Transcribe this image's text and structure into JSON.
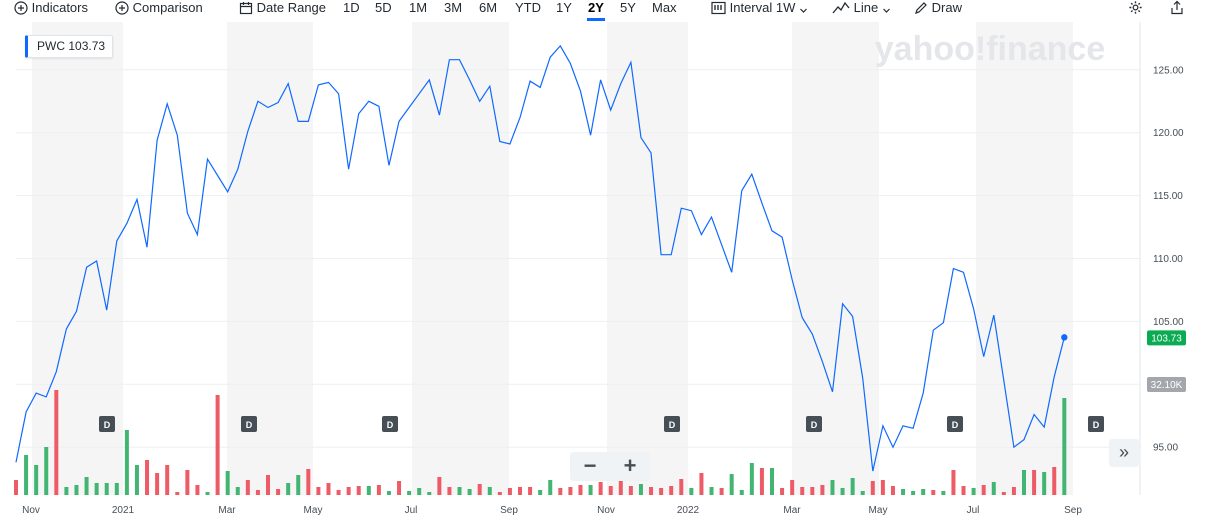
{
  "toolbar": {
    "indicators_label": "Indicators",
    "comparison_label": "Comparison",
    "date_range_label": "Date Range",
    "ranges": [
      "1D",
      "5D",
      "1M",
      "3M",
      "6M",
      "YTD",
      "1Y",
      "2Y",
      "5Y",
      "Max"
    ],
    "active_range": "2Y",
    "interval_label": "Interval",
    "interval_value": "1W",
    "chart_type_label": "Line",
    "draw_label": "Draw"
  },
  "watermark": "yahoo!finance",
  "legend": {
    "symbol": "PWC",
    "value": "103.73"
  },
  "current_price_label": "103.73",
  "current_volume_label": "32.10K",
  "colors": {
    "line": "#0f69ff",
    "vol_up": "#42b573",
    "vol_down": "#ed5b66",
    "price_badge": "#0bab54",
    "volume_badge": "#a3a7ab"
  },
  "chart_data": {
    "type": "line",
    "series": [
      {
        "values": [
          93.8,
          97.8,
          99.3,
          99,
          101,
          104.4,
          105.8,
          109.3,
          109.8,
          105.9,
          111.4,
          112.8,
          114.7,
          110.9,
          119.4,
          122.3,
          119.8,
          113.6,
          111.9,
          117.9,
          116.6,
          115.3,
          117.1,
          120.1,
          122.5,
          122.0,
          122.4,
          123.9,
          120.9,
          120.9,
          123.8,
          124.0,
          123.1,
          117.1,
          121.5,
          122.5,
          122.1,
          117.4,
          120.9,
          122.0,
          123.1,
          124.2,
          121.4,
          125.8,
          125.8,
          124.2,
          122.5,
          123.7,
          119.3,
          119.1,
          121.2,
          124.1,
          123.6,
          126.0,
          126.9,
          125.5,
          123.3,
          119.8,
          124.2,
          121.8,
          123.9,
          125.6,
          119.6,
          118.4,
          110.3,
          110.3,
          114.0,
          113.8,
          111.9,
          113.3,
          111.1,
          108.9,
          115.4,
          116.7,
          114.4,
          112.2,
          111.7,
          108.3,
          105.3,
          104.0,
          101.8,
          99.4,
          106.4,
          105.4,
          100.5,
          93.1,
          96.7,
          95.0,
          96.7,
          96.5,
          99.3,
          104.3,
          104.9,
          109.2,
          108.9,
          106.0,
          102.2,
          105.5,
          100.3,
          95.0,
          95.6,
          97.6,
          96.6,
          100.6,
          103.73
        ],
        "volume_direction": [
          "d",
          "u",
          "u",
          "u",
          "d",
          "u",
          "u",
          "u",
          "u",
          "u",
          "u",
          "u",
          "u",
          "d",
          "d",
          "d",
          "d",
          "d",
          "d",
          "u",
          "d",
          "u",
          "u",
          "d",
          "d",
          "d",
          "d",
          "u",
          "u",
          "d",
          "d",
          "d",
          "d",
          "d",
          "d",
          "u",
          "d",
          "u",
          "d",
          "u",
          "u",
          "u",
          "d",
          "d",
          "u",
          "u",
          "d",
          "u",
          "d",
          "d",
          "d",
          "d",
          "u",
          "u",
          "d",
          "d",
          "d",
          "u",
          "d",
          "d",
          "d",
          "d",
          "u",
          "d",
          "d",
          "d",
          "d",
          "u",
          "d",
          "u",
          "d",
          "u",
          "u",
          "u",
          "d",
          "u",
          "d",
          "d",
          "d",
          "d",
          "d",
          "u",
          "u",
          "u",
          "u",
          "d",
          "d",
          "d",
          "u",
          "u",
          "u",
          "d",
          "u",
          "d",
          "d",
          "u",
          "d",
          "u",
          "d",
          "d",
          "u",
          "d",
          "u",
          "d",
          "u"
        ]
      }
    ],
    "x_tick_labels": [
      "Nov",
      "2021",
      "Mar",
      "May",
      "Jul",
      "Sep",
      "Nov",
      "2022",
      "Mar",
      "May",
      "Jul",
      "Sep"
    ],
    "y_tick_labels": [
      "95.00",
      "100.00",
      "105.00",
      "110.00",
      "115.00",
      "120.00",
      "125.00"
    ],
    "y_ticks": [
      95,
      100,
      105,
      110,
      115,
      120,
      125
    ],
    "ylim": [
      91.2,
      128.8
    ],
    "dividend_marker_label": "D",
    "grid": true,
    "legend_position": "top-left"
  }
}
